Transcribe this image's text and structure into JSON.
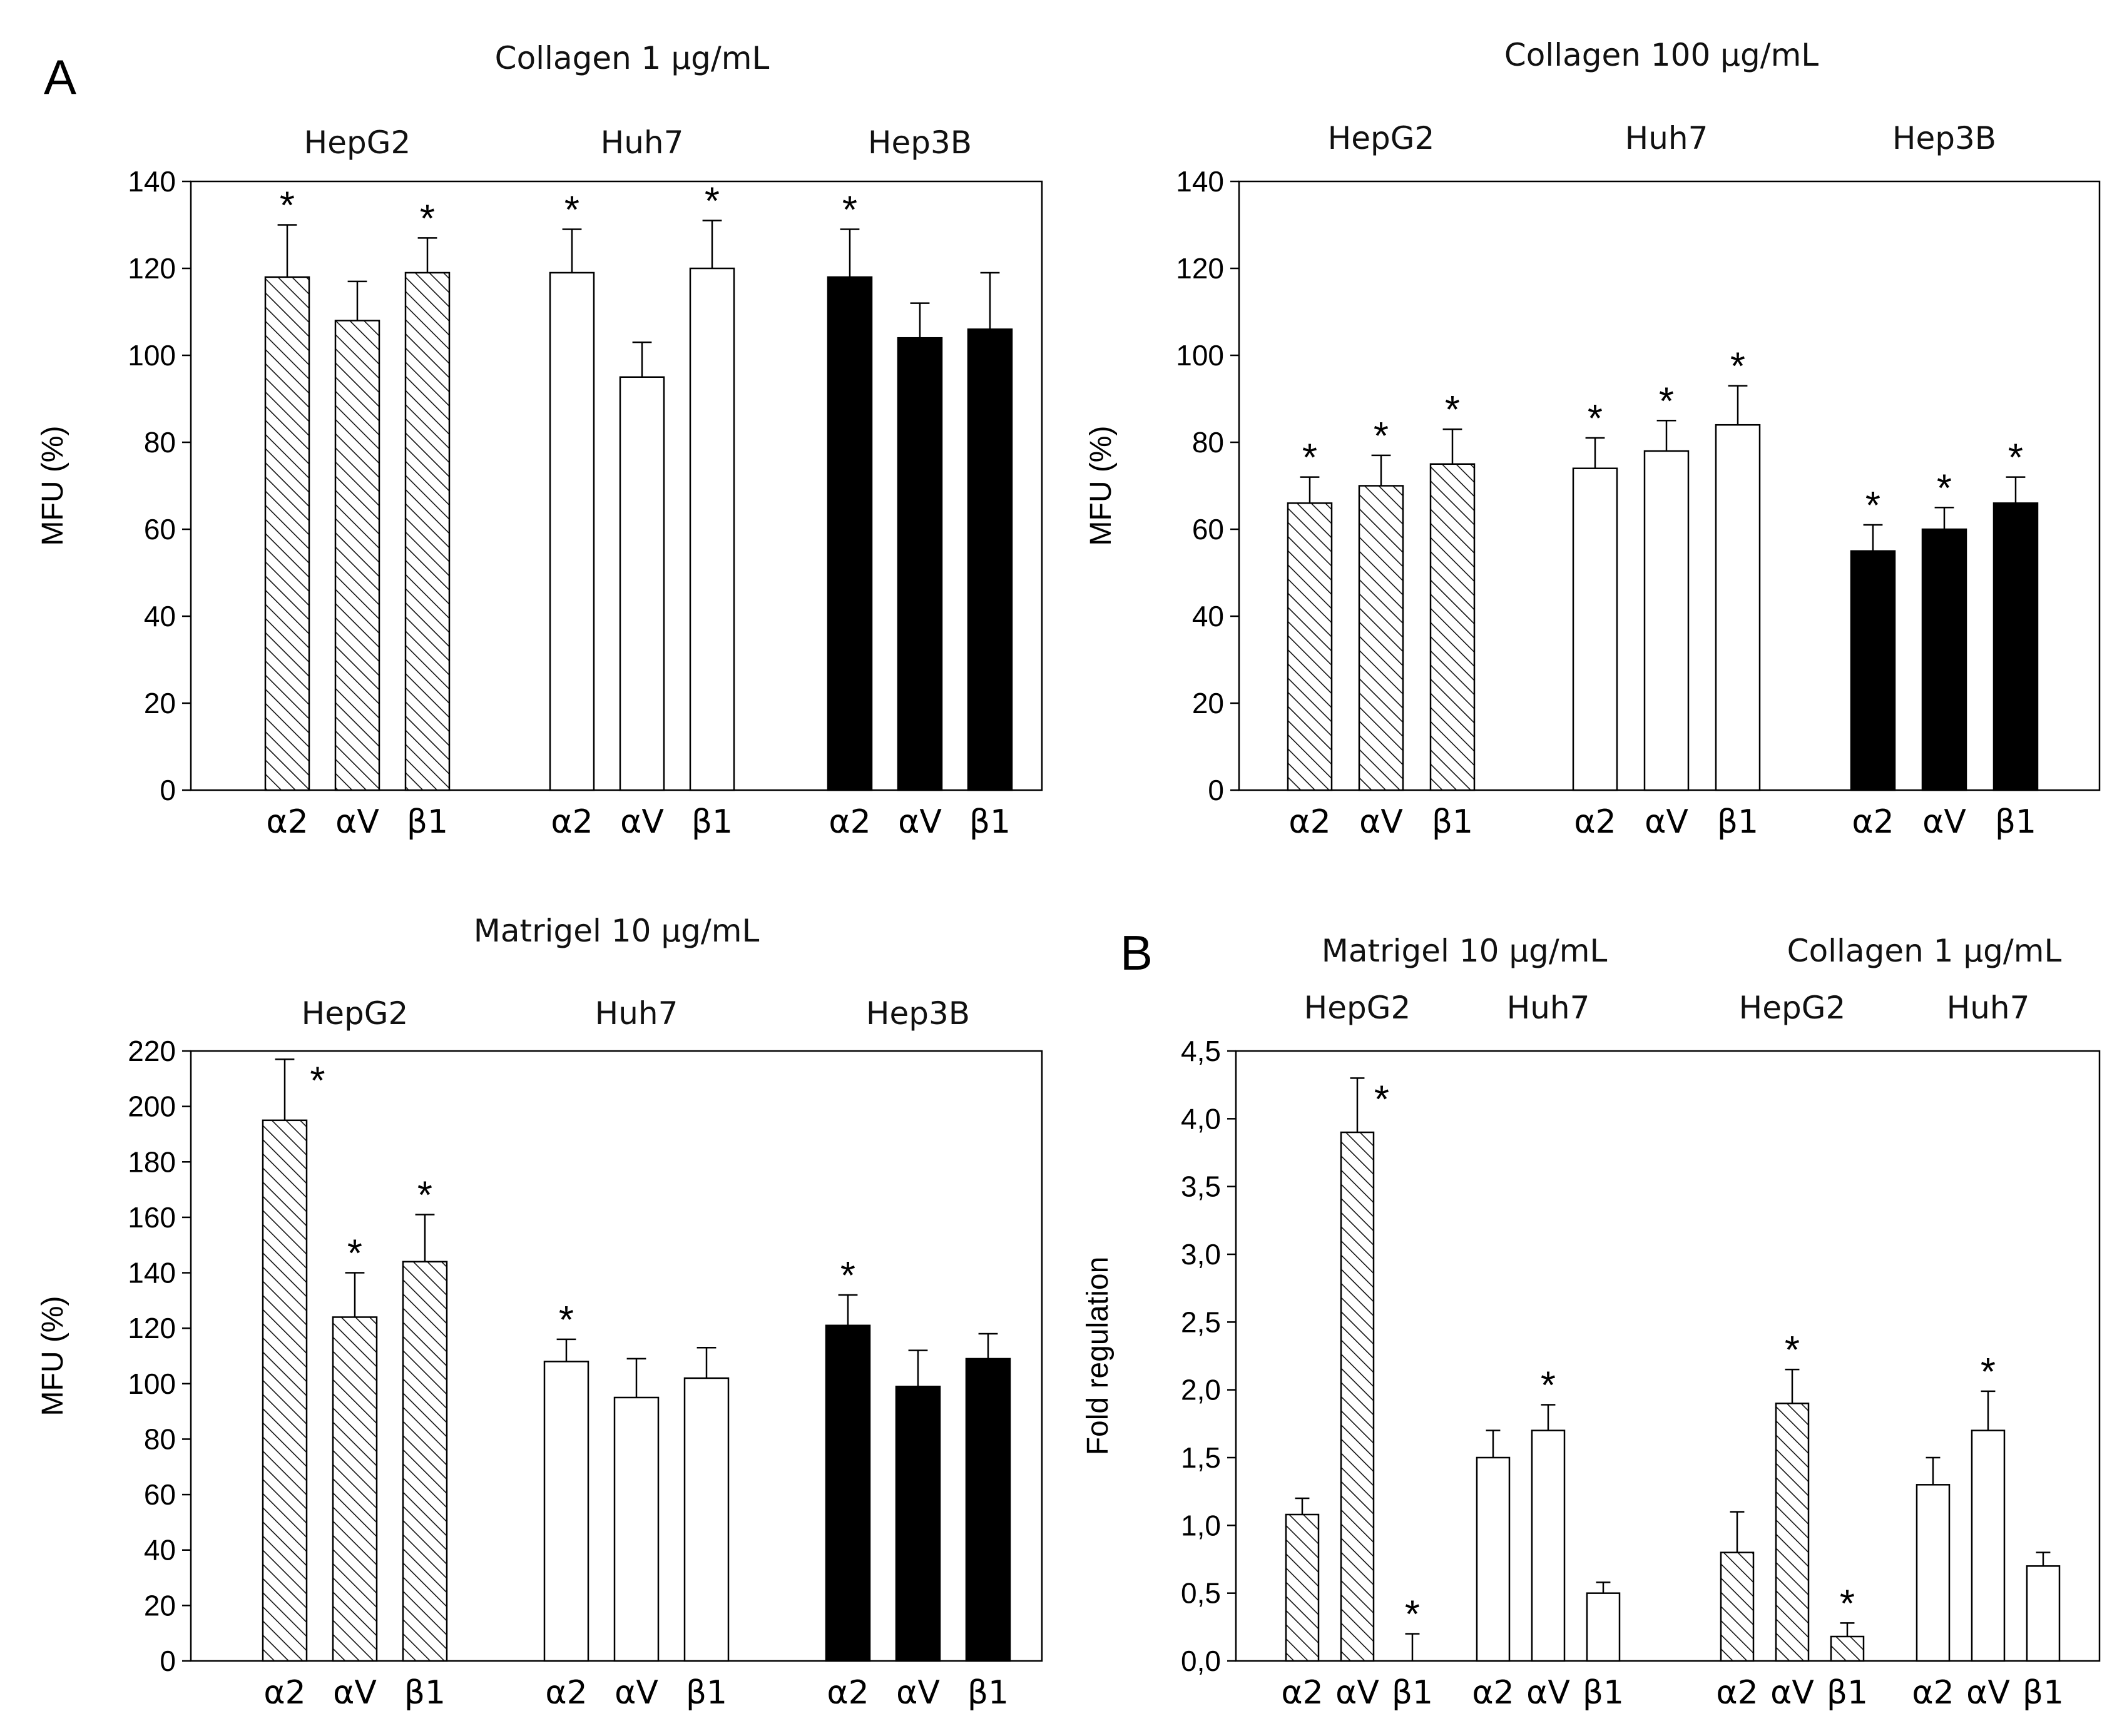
{
  "figure_labels": {
    "A": "A",
    "B": "B"
  },
  "chart_data": [
    {
      "type": "bar",
      "title": "Collagen 1 µg/mL",
      "ylabel": "MFU (%)",
      "ylim": [
        0,
        140
      ],
      "yticks": [
        0,
        20,
        40,
        60,
        80,
        100,
        120,
        140
      ],
      "ytick_labels": [
        "0",
        "20",
        "40",
        "60",
        "80",
        "100",
        "120",
        "140"
      ],
      "groups": [
        {
          "name": "HepG2",
          "fill": "hatch",
          "bars": [
            {
              "label": "α2",
              "value": 118,
              "error": 12,
              "sig": "*"
            },
            {
              "label": "αV",
              "value": 108,
              "error": 9,
              "sig": ""
            },
            {
              "label": "β1",
              "value": 119,
              "error": 8,
              "sig": "*"
            }
          ]
        },
        {
          "name": "Huh7",
          "fill": "white",
          "bars": [
            {
              "label": "α2",
              "value": 119,
              "error": 10,
              "sig": "*"
            },
            {
              "label": "αV",
              "value": 95,
              "error": 8,
              "sig": ""
            },
            {
              "label": "β1",
              "value": 120,
              "error": 11,
              "sig": "*"
            }
          ]
        },
        {
          "name": "Hep3B",
          "fill": "black",
          "bars": [
            {
              "label": "α2",
              "value": 118,
              "error": 11,
              "sig": "*"
            },
            {
              "label": "αV",
              "value": 104,
              "error": 8,
              "sig": ""
            },
            {
              "label": "β1",
              "value": 106,
              "error": 13,
              "sig": ""
            }
          ]
        }
      ]
    },
    {
      "type": "bar",
      "title": "Collagen 100 µg/mL",
      "ylabel": "MFU (%)",
      "ylim": [
        0,
        140
      ],
      "yticks": [
        0,
        20,
        40,
        60,
        80,
        100,
        120,
        140
      ],
      "ytick_labels": [
        "0",
        "20",
        "40",
        "60",
        "80",
        "100",
        "120",
        "140"
      ],
      "groups": [
        {
          "name": "HepG2",
          "fill": "hatch",
          "bars": [
            {
              "label": "α2",
              "value": 66,
              "error": 6,
              "sig": "*"
            },
            {
              "label": "αV",
              "value": 70,
              "error": 7,
              "sig": "*"
            },
            {
              "label": "β1",
              "value": 75,
              "error": 8,
              "sig": "*"
            }
          ]
        },
        {
          "name": "Huh7",
          "fill": "white",
          "bars": [
            {
              "label": "α2",
              "value": 74,
              "error": 7,
              "sig": "*"
            },
            {
              "label": "αV",
              "value": 78,
              "error": 7,
              "sig": "*"
            },
            {
              "label": "β1",
              "value": 84,
              "error": 9,
              "sig": "*"
            }
          ]
        },
        {
          "name": "Hep3B",
          "fill": "black",
          "bars": [
            {
              "label": "α2",
              "value": 55,
              "error": 6,
              "sig": "*"
            },
            {
              "label": "αV",
              "value": 60,
              "error": 5,
              "sig": "*"
            },
            {
              "label": "β1",
              "value": 66,
              "error": 6,
              "sig": "*"
            }
          ]
        }
      ]
    },
    {
      "type": "bar",
      "title": "Matrigel 10 µg/mL",
      "ylabel": "MFU (%)",
      "ylim": [
        0,
        220
      ],
      "yticks": [
        0,
        20,
        40,
        60,
        80,
        100,
        120,
        140,
        160,
        180,
        200,
        220
      ],
      "ytick_labels": [
        "0",
        "20",
        "40",
        "60",
        "80",
        "100",
        "120",
        "140",
        "160",
        "180",
        "200",
        "220"
      ],
      "groups": [
        {
          "name": "HepG2",
          "fill": "hatch",
          "bars": [
            {
              "label": "α2",
              "value": 195,
              "error": 22,
              "sig": "*"
            },
            {
              "label": "αV",
              "value": 124,
              "error": 16,
              "sig": "*"
            },
            {
              "label": "β1",
              "value": 144,
              "error": 17,
              "sig": "*"
            }
          ]
        },
        {
          "name": "Huh7",
          "fill": "white",
          "bars": [
            {
              "label": "α2",
              "value": 108,
              "error": 8,
              "sig": "*"
            },
            {
              "label": "αV",
              "value": 95,
              "error": 14,
              "sig": ""
            },
            {
              "label": "β1",
              "value": 102,
              "error": 11,
              "sig": ""
            }
          ]
        },
        {
          "name": "Hep3B",
          "fill": "black",
          "bars": [
            {
              "label": "α2",
              "value": 121,
              "error": 11,
              "sig": "*"
            },
            {
              "label": "αV",
              "value": 99,
              "error": 13,
              "sig": ""
            },
            {
              "label": "β1",
              "value": 109,
              "error": 9,
              "sig": ""
            }
          ]
        }
      ]
    },
    {
      "type": "bar",
      "title": "",
      "supertitles": [
        "Matrigel 10 µg/mL",
        "Collagen 1 µg/mL"
      ],
      "ylabel": "Fold regulation",
      "ylim": [
        0,
        4.5
      ],
      "yticks": [
        0,
        0.5,
        1,
        1.5,
        2,
        2.5,
        3,
        3.5,
        4,
        4.5
      ],
      "ytick_labels": [
        "0,0",
        "0,5",
        "1,0",
        "1,5",
        "2,0",
        "2,5",
        "3,0",
        "3,5",
        "4,0",
        "4,5"
      ],
      "groups": [
        {
          "name": "HepG2",
          "fill": "hatch",
          "bars": [
            {
              "label": "α2",
              "value": 1.08,
              "error": 0.12,
              "sig": ""
            },
            {
              "label": "αV",
              "value": 3.9,
              "error": 0.4,
              "sig": "*"
            },
            {
              "label": "β1",
              "value": 0.0,
              "error": 0.2,
              "sig": "*"
            }
          ]
        },
        {
          "name": "Huh7",
          "fill": "white",
          "bars": [
            {
              "label": "α2",
              "value": 1.5,
              "error": 0.2,
              "sig": ""
            },
            {
              "label": "αV",
              "value": 1.7,
              "error": 0.19,
              "sig": "*"
            },
            {
              "label": "β1",
              "value": 0.5,
              "error": 0.08,
              "sig": ""
            }
          ]
        },
        {
          "name": "HepG2",
          "fill": "hatch",
          "bars": [
            {
              "label": "α2",
              "value": 0.8,
              "error": 0.3,
              "sig": ""
            },
            {
              "label": "αV",
              "value": 1.9,
              "error": 0.25,
              "sig": "*"
            },
            {
              "label": "β1",
              "value": 0.18,
              "error": 0.1,
              "sig": "*"
            }
          ]
        },
        {
          "name": "Huh7",
          "fill": "white",
          "bars": [
            {
              "label": "α2",
              "value": 1.3,
              "error": 0.2,
              "sig": ""
            },
            {
              "label": "αV",
              "value": 1.7,
              "error": 0.29,
              "sig": "*"
            },
            {
              "label": "β1",
              "value": 0.7,
              "error": 0.1,
              "sig": ""
            }
          ]
        }
      ]
    }
  ]
}
